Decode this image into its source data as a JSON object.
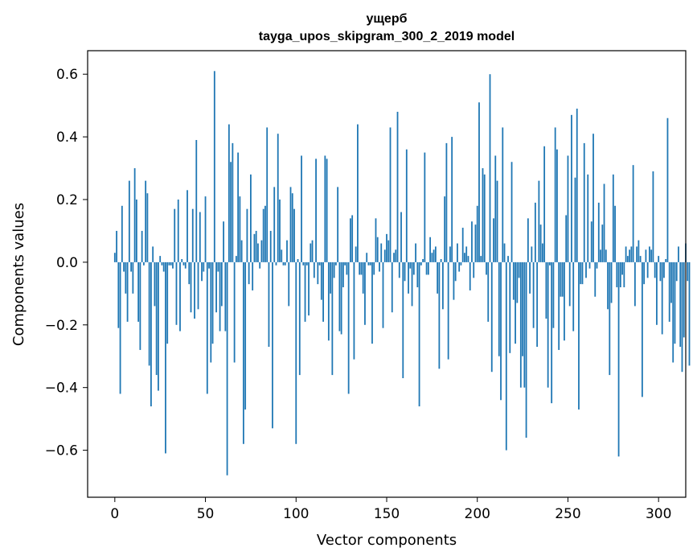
{
  "chart_data": {
    "type": "bar",
    "title": "ущерб",
    "subtitle": "tayga_upos_skipgram_300_2_2019 model",
    "xlabel": "Vector components",
    "ylabel": "Components values",
    "xlim": [
      -15,
      315
    ],
    "ylim": [
      -0.75,
      0.675
    ],
    "xticks": [
      0,
      50,
      100,
      150,
      200,
      250,
      300
    ],
    "xtick_labels": [
      "0",
      "50",
      "100",
      "150",
      "200",
      "250",
      "300"
    ],
    "yticks": [
      -0.6,
      -0.4,
      -0.2,
      0.0,
      0.2,
      0.4,
      0.6
    ],
    "ytick_labels": [
      "−0.6",
      "−0.4",
      "−0.2",
      "0.0",
      "0.2",
      "0.4",
      "0.6"
    ],
    "bar_color": "#1f77b4",
    "grid": false,
    "values": [
      0.03,
      0.1,
      -0.21,
      -0.42,
      0.18,
      -0.03,
      -0.1,
      -0.19,
      0.26,
      -0.03,
      -0.1,
      0.3,
      0.2,
      -0.19,
      -0.28,
      0.1,
      -0.01,
      0.26,
      0.22,
      -0.33,
      -0.46,
      0.05,
      -0.14,
      -0.36,
      -0.41,
      0.02,
      -0.01,
      -0.03,
      -0.61,
      -0.26,
      -0.01,
      -0.01,
      -0.02,
      0.17,
      -0.2,
      0.2,
      -0.22,
      0.01,
      -0.01,
      -0.02,
      0.23,
      -0.07,
      -0.16,
      0.17,
      -0.18,
      0.39,
      -0.15,
      0.16,
      -0.06,
      -0.03,
      0.21,
      -0.42,
      -0.02,
      -0.32,
      -0.26,
      0.61,
      -0.16,
      -0.03,
      -0.22,
      -0.14,
      0.13,
      -0.22,
      -0.68,
      0.44,
      0.32,
      0.38,
      -0.32,
      0.02,
      0.35,
      0.21,
      0.07,
      -0.58,
      -0.47,
      0.17,
      -0.07,
      0.28,
      -0.09,
      0.09,
      0.1,
      0.06,
      -0.02,
      0.07,
      0.17,
      0.18,
      0.43,
      -0.27,
      0.1,
      -0.53,
      0.24,
      -0.01,
      0.41,
      0.2,
      0.04,
      -0.01,
      -0.01,
      0.07,
      -0.14,
      0.24,
      0.22,
      0.17,
      -0.58,
      0.01,
      -0.36,
      0.34,
      -0.01,
      -0.19,
      -0.01,
      -0.17,
      0.06,
      0.07,
      -0.05,
      0.33,
      -0.07,
      -0.01,
      -0.12,
      -0.19,
      0.34,
      0.33,
      -0.25,
      -0.1,
      -0.36,
      -0.05,
      -0.01,
      0.24,
      -0.22,
      -0.23,
      -0.08,
      -0.01,
      -0.04,
      -0.42,
      0.14,
      0.15,
      -0.31,
      0.05,
      0.44,
      -0.04,
      -0.04,
      -0.1,
      -0.2,
      0.03,
      -0.01,
      -0.01,
      -0.26,
      -0.04,
      0.14,
      0.08,
      -0.03,
      0.06,
      -0.21,
      0.04,
      0.09,
      0.07,
      0.43,
      -0.16,
      0.03,
      0.04,
      0.48,
      -0.05,
      0.16,
      -0.37,
      -0.06,
      0.36,
      -0.1,
      -0.02,
      -0.14,
      -0.04,
      0.06,
      -0.08,
      -0.46,
      -0.01,
      0.01,
      0.35,
      -0.04,
      -0.04,
      0.08,
      0.03,
      0.04,
      0.05,
      -0.1,
      -0.34,
      0.01,
      -0.15,
      0.21,
      0.38,
      -0.31,
      0.05,
      0.4,
      -0.12,
      -0.06,
      0.06,
      -0.03,
      -0.01,
      0.11,
      0.03,
      0.05,
      0.02,
      -0.09,
      0.13,
      -0.05,
      0.12,
      0.18,
      0.51,
      0.02,
      0.3,
      0.28,
      -0.04,
      -0.19,
      0.6,
      -0.35,
      0.14,
      0.34,
      0.26,
      -0.3,
      -0.44,
      0.43,
      0.06,
      -0.6,
      0.02,
      -0.29,
      0.32,
      -0.12,
      -0.26,
      -0.13,
      -0.05,
      -0.4,
      -0.3,
      -0.4,
      -0.56,
      0.14,
      -0.1,
      0.05,
      -0.21,
      0.19,
      -0.27,
      0.26,
      0.12,
      0.06,
      0.37,
      -0.18,
      -0.4,
      -0.01,
      -0.45,
      -0.21,
      0.43,
      0.36,
      -0.28,
      -0.11,
      -0.11,
      -0.25,
      0.15,
      0.34,
      -0.14,
      0.47,
      -0.22,
      0.27,
      0.49,
      -0.47,
      -0.07,
      -0.07,
      0.38,
      -0.05,
      0.28,
      -0.02,
      0.13,
      0.41,
      -0.11,
      -0.02,
      0.19,
      0.04,
      0.12,
      0.25,
      0.04,
      -0.15,
      -0.36,
      -0.13,
      0.28,
      0.18,
      -0.08,
      -0.62,
      -0.08,
      -0.04,
      -0.08,
      0.05,
      0.02,
      0.04,
      0.05,
      0.31,
      -0.14,
      0.05,
      0.07,
      0.02,
      -0.43,
      -0.07,
      0.04,
      -0.05,
      0.05,
      0.04,
      0.29,
      -0.05,
      -0.2,
      0.02,
      -0.06,
      -0.23,
      -0.05,
      0.01,
      0.46,
      -0.19,
      -0.13,
      -0.32,
      -0.26,
      -0.06,
      0.05,
      -0.27,
      -0.35,
      -0.24,
      0.06,
      -0.06,
      -0.33
    ]
  }
}
